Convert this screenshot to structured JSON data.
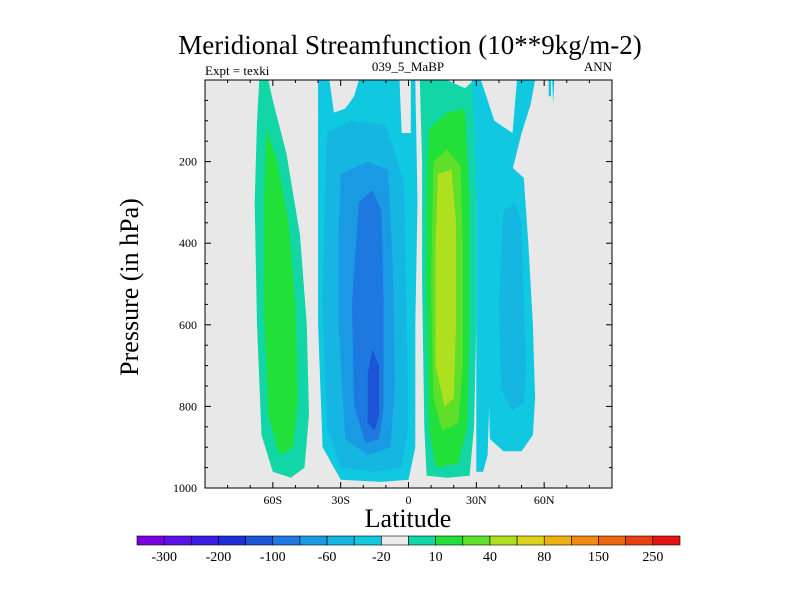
{
  "chart_data": {
    "type": "heatmap",
    "title": "Meridional Streamfunction (10**9kg/m-2)",
    "subtitle_left": "Expt = texki",
    "subtitle_center": "039_5_MaBP",
    "subtitle_right": "ANN",
    "xlabel": "Latitude",
    "ylabel": "Pressure (in hPa)",
    "xlim": [
      -90,
      90
    ],
    "ylim": [
      1000,
      0
    ],
    "x_ticks": [
      {
        "value": -60,
        "label": "60S"
      },
      {
        "value": -30,
        "label": "30S"
      },
      {
        "value": 0,
        "label": "0"
      },
      {
        "value": 30,
        "label": "30N"
      },
      {
        "value": 60,
        "label": "60N"
      }
    ],
    "y_ticks": [
      {
        "value": 200,
        "label": "200"
      },
      {
        "value": 400,
        "label": "400"
      },
      {
        "value": 600,
        "label": "600"
      },
      {
        "value": 800,
        "label": "800"
      },
      {
        "value": 1000,
        "label": "1000"
      }
    ],
    "background_color": "#e8e8e8",
    "colorbar": {
      "colors": [
        "#7a00e0",
        "#5a10e8",
        "#3a1ee8",
        "#1f2edb",
        "#1c54d8",
        "#1d78e0",
        "#1b9ae4",
        "#16b6e2",
        "#10c8e0",
        "#ececec",
        "#12d6a6",
        "#22e03a",
        "#5ee02a",
        "#aee020",
        "#dcd41a",
        "#f0b014",
        "#f08a10",
        "#ec6610",
        "#e84010",
        "#e81414"
      ],
      "labels": [
        "-300",
        "-200",
        "-100",
        "-60",
        "-20",
        "10",
        "40",
        "80",
        "150",
        "250"
      ]
    },
    "contour_regions": [
      {
        "name": "sh-upper-green-band",
        "level": "10 to 40",
        "color": "#12d6a6",
        "points": [
          [
            -66,
            0
          ],
          [
            -62,
            0
          ],
          [
            -60,
            50
          ],
          [
            -54,
            180
          ],
          [
            -48,
            380
          ],
          [
            -45,
            600
          ],
          [
            -44,
            820
          ],
          [
            -46,
            950
          ],
          [
            -52,
            975
          ],
          [
            -60,
            960
          ],
          [
            -65,
            870
          ],
          [
            -67,
            600
          ],
          [
            -68,
            300
          ],
          [
            -67,
            100
          ]
        ]
      },
      {
        "name": "sh-cell-core",
        "level": "40",
        "color": "#22e03a",
        "points": [
          [
            -63,
            120
          ],
          [
            -58,
            200
          ],
          [
            -53,
            350
          ],
          [
            -50,
            550
          ],
          [
            -49,
            780
          ],
          [
            -51,
            900
          ],
          [
            -57,
            920
          ],
          [
            -62,
            820
          ],
          [
            -64,
            550
          ],
          [
            -64,
            300
          ]
        ]
      },
      {
        "name": "south-hadley-outer",
        "level": "-20 to 10",
        "color": "#10c8e0",
        "points": [
          [
            -40,
            0
          ],
          [
            -35,
            0
          ],
          [
            -33,
            80
          ],
          [
            -28,
            70
          ],
          [
            -24,
            40
          ],
          [
            -22,
            0
          ],
          [
            -4,
            0
          ],
          [
            -3,
            130
          ],
          [
            1,
            130
          ],
          [
            1,
            0
          ],
          [
            3,
            0
          ],
          [
            4,
            300
          ],
          [
            3,
            600
          ],
          [
            3,
            900
          ],
          [
            0,
            980
          ],
          [
            -12,
            985
          ],
          [
            -30,
            980
          ],
          [
            -38,
            900
          ],
          [
            -40,
            600
          ],
          [
            -40,
            300
          ]
        ]
      },
      {
        "name": "south-hadley-mid",
        "level": "-20",
        "color": "#16b6e2",
        "points": [
          [
            -36,
            130
          ],
          [
            -25,
            100
          ],
          [
            -10,
            110
          ],
          [
            -2,
            250
          ],
          [
            -1,
            550
          ],
          [
            0,
            850
          ],
          [
            -3,
            950
          ],
          [
            -15,
            960
          ],
          [
            -30,
            950
          ],
          [
            -36,
            850
          ],
          [
            -38,
            550
          ],
          [
            -37,
            300
          ]
        ]
      },
      {
        "name": "south-hadley-inner",
        "level": "-60",
        "color": "#1b9ae4",
        "points": [
          [
            -30,
            230
          ],
          [
            -18,
            200
          ],
          [
            -9,
            220
          ],
          [
            -7,
            450
          ],
          [
            -6,
            750
          ],
          [
            -8,
            900
          ],
          [
            -18,
            920
          ],
          [
            -28,
            880
          ],
          [
            -31,
            600
          ],
          [
            -31,
            380
          ]
        ]
      },
      {
        "name": "south-hadley-core",
        "level": "-100",
        "color": "#1d78e0",
        "points": [
          [
            -22,
            300
          ],
          [
            -16,
            270
          ],
          [
            -12,
            320
          ],
          [
            -11,
            550
          ],
          [
            -11,
            800
          ],
          [
            -13,
            880
          ],
          [
            -19,
            890
          ],
          [
            -24,
            800
          ],
          [
            -25,
            550
          ]
        ]
      },
      {
        "name": "south-hadley-deep",
        "level": "-100 to -200",
        "color": "#1c54d8",
        "points": [
          [
            -16,
            660
          ],
          [
            -13,
            700
          ],
          [
            -13,
            820
          ],
          [
            -15,
            860
          ],
          [
            -18,
            840
          ],
          [
            -18,
            720
          ]
        ]
      },
      {
        "name": "north-hadley-outer",
        "level": "10",
        "color": "#12d6a6",
        "points": [
          [
            5,
            0
          ],
          [
            17,
            0
          ],
          [
            25,
            20
          ],
          [
            29,
            0
          ],
          [
            31,
            0
          ],
          [
            30,
            300
          ],
          [
            30,
            600
          ],
          [
            29,
            850
          ],
          [
            27,
            970
          ],
          [
            17,
            975
          ],
          [
            8,
            970
          ],
          [
            7,
            850
          ],
          [
            6,
            500
          ],
          [
            6,
            200
          ]
        ]
      },
      {
        "name": "north-hadley-mid",
        "level": "40",
        "color": "#22e03a",
        "points": [
          [
            9,
            120
          ],
          [
            17,
            80
          ],
          [
            25,
            70
          ],
          [
            27,
            300
          ],
          [
            27,
            600
          ],
          [
            26,
            850
          ],
          [
            22,
            940
          ],
          [
            12,
            950
          ],
          [
            9,
            850
          ],
          [
            8,
            500
          ],
          [
            8,
            250
          ]
        ]
      },
      {
        "name": "north-hadley-inner",
        "level": "80",
        "color": "#5ee02a",
        "points": [
          [
            11,
            200
          ],
          [
            17,
            170
          ],
          [
            23,
            210
          ],
          [
            24,
            400
          ],
          [
            24,
            700
          ],
          [
            22,
            840
          ],
          [
            15,
            860
          ],
          [
            11,
            780
          ],
          [
            10,
            500
          ]
        ]
      },
      {
        "name": "north-hadley-core",
        "level": "80 to 150",
        "color": "#aee020",
        "points": [
          [
            13,
            230
          ],
          [
            19,
            220
          ],
          [
            21,
            350
          ],
          [
            21,
            600
          ],
          [
            20,
            780
          ],
          [
            16,
            800
          ],
          [
            12,
            700
          ],
          [
            12,
            400
          ]
        ]
      },
      {
        "name": "ferrel-outer",
        "level": "-20",
        "color": "#10c8e0",
        "points": [
          [
            28,
            0
          ],
          [
            32,
            0
          ],
          [
            38,
            100
          ],
          [
            46,
            130
          ],
          [
            48,
            0
          ],
          [
            56,
            0
          ],
          [
            54,
            60
          ],
          [
            50,
            130
          ],
          [
            46,
            220
          ],
          [
            42,
            280
          ],
          [
            38,
            450
          ],
          [
            36,
            750
          ],
          [
            35,
            920
          ],
          [
            33,
            960
          ],
          [
            30,
            960
          ],
          [
            30,
            600
          ],
          [
            30,
            300
          ],
          [
            29,
            100
          ]
        ]
      },
      {
        "name": "ferrel-outer-2",
        "level": "-20",
        "color": "#10c8e0",
        "points": [
          [
            38,
            230
          ],
          [
            45,
            210
          ],
          [
            51,
            240
          ],
          [
            53,
            400
          ],
          [
            55,
            600
          ],
          [
            56,
            780
          ],
          [
            55,
            870
          ],
          [
            50,
            910
          ],
          [
            42,
            910
          ],
          [
            36,
            880
          ],
          [
            35,
            650
          ],
          [
            36,
            400
          ]
        ]
      },
      {
        "name": "ferrel-inner",
        "level": "-20 to -60",
        "color": "#16b6e2",
        "points": [
          [
            42,
            320
          ],
          [
            47,
            300
          ],
          [
            50,
            350
          ],
          [
            51,
            550
          ],
          [
            52,
            700
          ],
          [
            51,
            790
          ],
          [
            46,
            810
          ],
          [
            41,
            760
          ],
          [
            40,
            550
          ]
        ]
      },
      {
        "name": "polar-sliver",
        "level": "-20",
        "color": "#10c8e0",
        "points": [
          [
            62,
            0
          ],
          [
            63,
            0
          ],
          [
            63,
            40
          ],
          [
            62,
            40
          ]
        ]
      },
      {
        "name": "polar-sliver-2",
        "level": "-20",
        "color": "#10c8e0",
        "points": [
          [
            63.5,
            0
          ],
          [
            64.5,
            0
          ],
          [
            64,
            60
          ]
        ]
      }
    ]
  }
}
